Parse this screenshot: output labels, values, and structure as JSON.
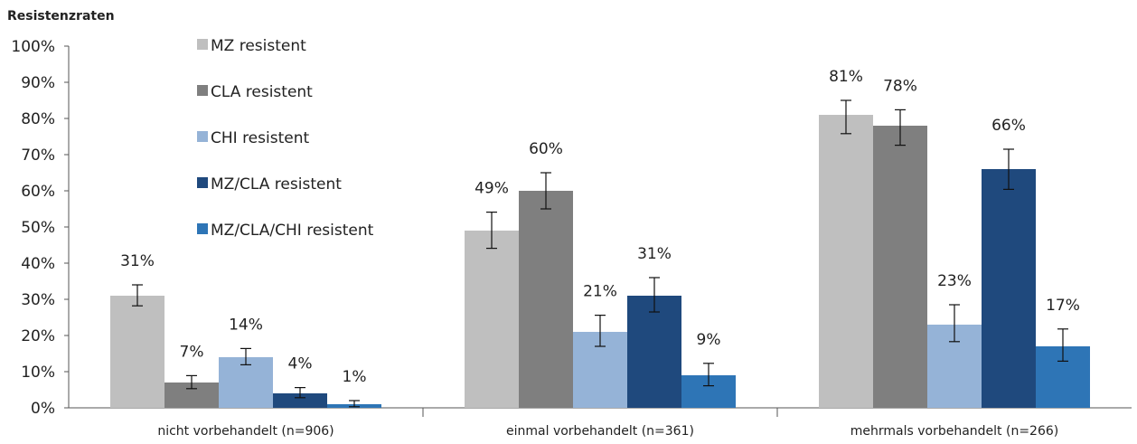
{
  "chart_data": {
    "type": "bar",
    "ylabel": "Resistenzraten",
    "y_tick_labels": [
      "0%",
      "10%",
      "20%",
      "30%",
      "40%",
      "50%",
      "60%",
      "70%",
      "80%",
      "90%",
      "100%"
    ],
    "ylim": [
      0,
      100
    ],
    "categories": [
      "nicht vorbehandelt (n=906)",
      "einmal vorbehandelt (n=361)",
      "mehrmals vorbehandelt (n=266)"
    ],
    "legend_position": "top-left",
    "grid": false,
    "series": [
      {
        "name": "MZ resistent",
        "color": "#bfbfbf",
        "values": [
          31,
          49,
          81
        ],
        "labels": [
          "31%",
          "49%",
          "81%"
        ],
        "err_low": [
          28.2,
          44.1,
          75.8
        ],
        "err_high": [
          34.0,
          54.1,
          85.0
        ]
      },
      {
        "name": "CLA resistent",
        "color": "#7f7f7f",
        "values": [
          7,
          60,
          78
        ],
        "labels": [
          "7%",
          "60%",
          "78%"
        ],
        "err_low": [
          5.3,
          55.0,
          72.6
        ],
        "err_high": [
          8.9,
          65.0,
          82.4
        ]
      },
      {
        "name": "CHI resistent",
        "color": "#95b3d7",
        "values": [
          14,
          21,
          23
        ],
        "labels": [
          "14%",
          "21%",
          "23%"
        ],
        "err_low": [
          11.9,
          17.0,
          18.3
        ],
        "err_high": [
          16.4,
          25.6,
          28.5
        ]
      },
      {
        "name": "MZ/CLA resistent",
        "color": "#1f497d",
        "values": [
          4,
          31,
          66
        ],
        "labels": [
          "4%",
          "31%",
          "66%"
        ],
        "err_low": [
          2.8,
          26.5,
          60.4
        ],
        "err_high": [
          5.6,
          36.0,
          71.5
        ]
      },
      {
        "name": "MZ/CLA/CHI resistent",
        "color": "#2e75b6",
        "values": [
          1,
          9,
          17
        ],
        "labels": [
          "1%",
          "9%",
          "17%"
        ],
        "err_low": [
          0.3,
          6.1,
          12.9
        ],
        "err_high": [
          2.0,
          12.3,
          21.8
        ]
      }
    ]
  }
}
